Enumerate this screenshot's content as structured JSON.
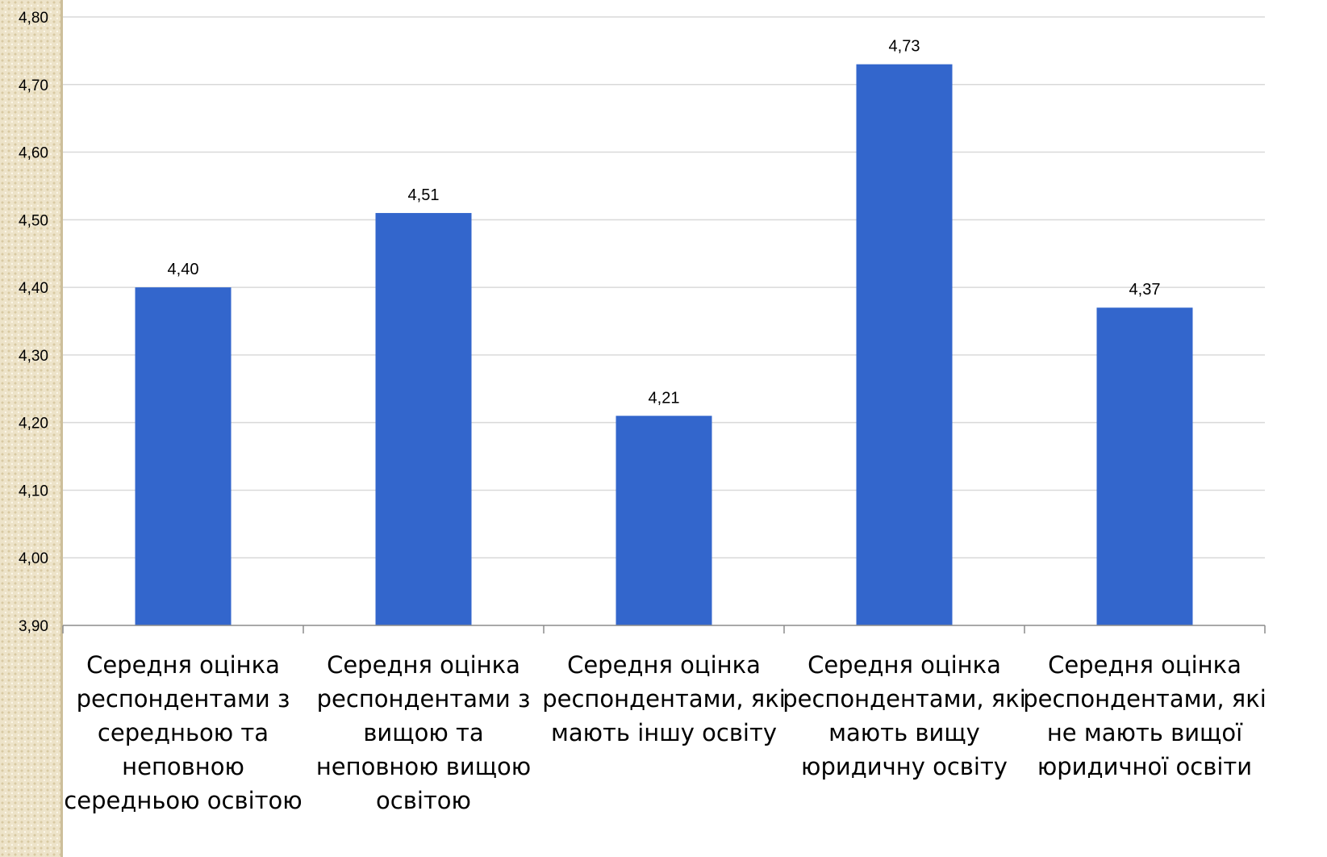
{
  "chart_data": {
    "type": "bar",
    "title": "",
    "xlabel": "",
    "ylabel": "",
    "ylim": [
      3.9,
      4.8
    ],
    "y_ticks": [
      "3,90",
      "4,00",
      "4,10",
      "4,20",
      "4,30",
      "4,40",
      "4,50",
      "4,60",
      "4,70",
      "4,80"
    ],
    "grid": true,
    "bar_color": "#3366cc",
    "categories": [
      [
        "Середня оцінка",
        "респондентами з",
        "середньою та",
        "неповною",
        "середньою освітою"
      ],
      [
        "Середня оцінка",
        "респондентами з",
        "вищою та",
        "неповною вищою",
        "освітою"
      ],
      [
        "Середня оцінка",
        "респондентами, які",
        "мають іншу освіту"
      ],
      [
        "Середня оцінка",
        "респондентами, які",
        "мають вищу",
        "юридичну освіту"
      ],
      [
        "Середня оцінка",
        "респондентами, які",
        "не мають вищої",
        "юридичної освіти"
      ]
    ],
    "values": [
      4.4,
      4.51,
      4.21,
      4.73,
      4.37
    ],
    "data_labels": [
      "4,40",
      "4,51",
      "4,21",
      "4,73",
      "4,37"
    ]
  }
}
